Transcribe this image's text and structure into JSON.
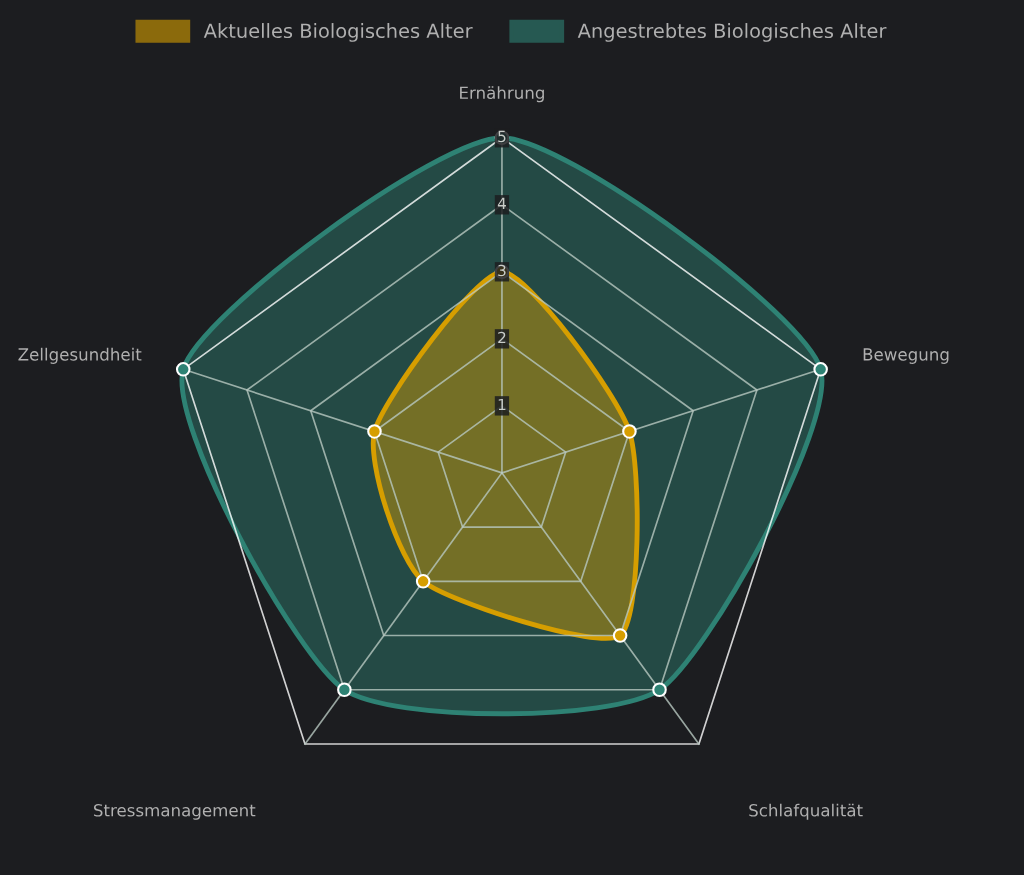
{
  "chart_data": {
    "type": "radar",
    "categories": [
      "Ernährung",
      "Bewegung",
      "Schlafqualität",
      "Stressmanagement",
      "Zellgesundheit"
    ],
    "series": [
      {
        "name": "Aktuelles Biologisches Alter",
        "color": "#d69e00",
        "values": [
          3,
          2,
          3,
          2,
          2
        ]
      },
      {
        "name": "Angestrebtes Biologisches Alter",
        "color": "#2e8274",
        "values": [
          5,
          5,
          4,
          4,
          5
        ]
      }
    ],
    "ylim": [
      0,
      5
    ],
    "yticks": [
      1,
      2,
      3,
      4,
      5
    ],
    "grid": true,
    "legend": "top",
    "marker": "circle",
    "line_style": "solid"
  }
}
